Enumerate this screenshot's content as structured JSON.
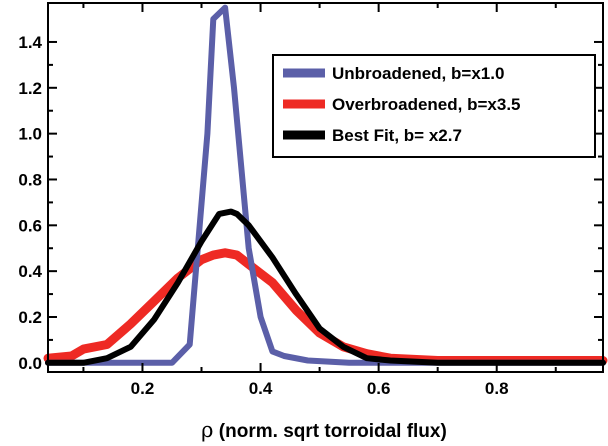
{
  "chart_data": {
    "type": "line",
    "title": "",
    "xlabel_symbol": "ρ",
    "xlabel_text": " (norm. sqrt torroidal flux)",
    "ylabel": "",
    "xlim": [
      0.04,
      0.98
    ],
    "ylim": [
      -0.04,
      1.57
    ],
    "xticks": [
      0.2,
      0.4,
      0.6,
      0.8
    ],
    "xtick_labels": [
      "0.2",
      "0.4",
      "0.6",
      "0.8"
    ],
    "yticks": [
      0.0,
      0.2,
      0.4,
      0.6,
      0.8,
      1.0,
      1.2,
      1.4
    ],
    "ytick_labels": [
      "0.0",
      "0.2",
      "0.4",
      "0.6",
      "0.8",
      "1.0",
      "1.2",
      "1.4"
    ],
    "grid": false,
    "legend_position": "top-right",
    "series": [
      {
        "name": "Unbroadened, b=x1.0",
        "color": "#5b5fa8",
        "points": [
          [
            0.04,
            0.0
          ],
          [
            0.12,
            0.0
          ],
          [
            0.2,
            0.0
          ],
          [
            0.25,
            0.0
          ],
          [
            0.28,
            0.08
          ],
          [
            0.31,
            1.0
          ],
          [
            0.32,
            1.5
          ],
          [
            0.34,
            1.55
          ],
          [
            0.355,
            1.2
          ],
          [
            0.38,
            0.5
          ],
          [
            0.4,
            0.2
          ],
          [
            0.42,
            0.05
          ],
          [
            0.44,
            0.03
          ],
          [
            0.48,
            0.01
          ],
          [
            0.55,
            0.0
          ],
          [
            0.7,
            0.0
          ],
          [
            0.98,
            0.0
          ]
        ]
      },
      {
        "name": "Overbroadened, b=x3.5",
        "color": "#ee2a24",
        "points": [
          [
            0.04,
            0.02
          ],
          [
            0.08,
            0.03
          ],
          [
            0.1,
            0.06
          ],
          [
            0.14,
            0.08
          ],
          [
            0.18,
            0.17
          ],
          [
            0.22,
            0.27
          ],
          [
            0.26,
            0.37
          ],
          [
            0.3,
            0.45
          ],
          [
            0.32,
            0.47
          ],
          [
            0.34,
            0.48
          ],
          [
            0.36,
            0.47
          ],
          [
            0.38,
            0.43
          ],
          [
            0.42,
            0.35
          ],
          [
            0.46,
            0.23
          ],
          [
            0.5,
            0.13
          ],
          [
            0.54,
            0.07
          ],
          [
            0.58,
            0.04
          ],
          [
            0.62,
            0.02
          ],
          [
            0.7,
            0.01
          ],
          [
            0.98,
            0.01
          ]
        ]
      },
      {
        "name": "Best Fit, b= x2.7",
        "color": "#000000",
        "points": [
          [
            0.04,
            0.0
          ],
          [
            0.1,
            0.0
          ],
          [
            0.14,
            0.02
          ],
          [
            0.18,
            0.07
          ],
          [
            0.22,
            0.19
          ],
          [
            0.26,
            0.35
          ],
          [
            0.3,
            0.53
          ],
          [
            0.32,
            0.61
          ],
          [
            0.33,
            0.65
          ],
          [
            0.35,
            0.66
          ],
          [
            0.36,
            0.65
          ],
          [
            0.38,
            0.6
          ],
          [
            0.42,
            0.46
          ],
          [
            0.46,
            0.3
          ],
          [
            0.5,
            0.15
          ],
          [
            0.54,
            0.07
          ],
          [
            0.58,
            0.02
          ],
          [
            0.62,
            0.01
          ],
          [
            0.7,
            0.0
          ],
          [
            0.98,
            0.0
          ]
        ]
      }
    ]
  }
}
